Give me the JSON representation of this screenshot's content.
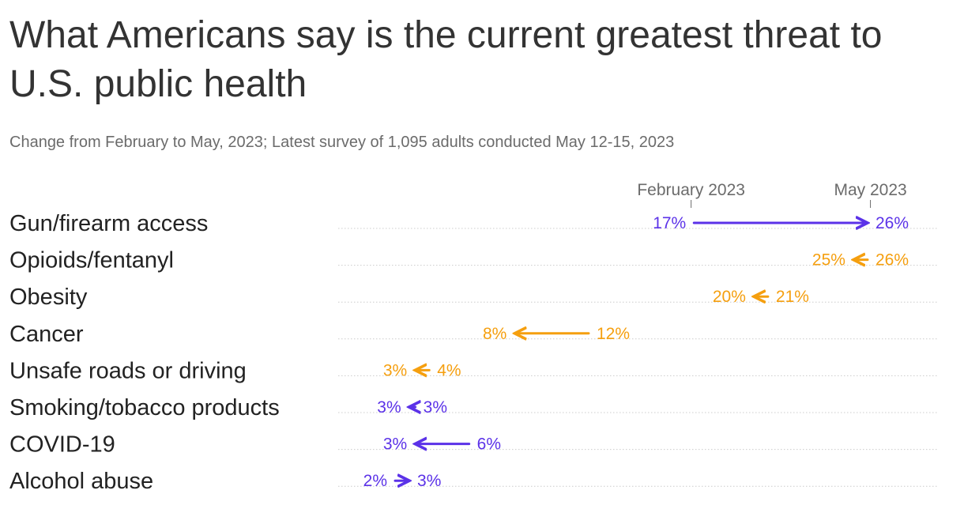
{
  "title": "What Americans say is the current greatest threat to U.S. public health",
  "subtitle": "Change from February to May, 2023; Latest survey of 1,095 adults conducted May 12-15, 2023",
  "colors": {
    "increase_or_same": "#5b32e8",
    "decrease": "#f59f0f",
    "gridline": "#cccccc",
    "header": "#6b6b6b"
  },
  "chart_data": {
    "type": "arrow-dot",
    "title": "What Americans say is the current greatest threat to U.S. public health",
    "subtitle": "Change from February to May, 2023; Latest survey of 1,095 adults conducted May 12-15, 2023",
    "series": [
      {
        "name": "February 2023",
        "values": [
          17,
          26,
          21,
          12,
          4,
          3,
          6,
          2
        ]
      },
      {
        "name": "May 2023",
        "values": [
          26,
          25,
          20,
          8,
          3,
          3,
          3,
          3
        ]
      }
    ],
    "rows": [
      {
        "label": "Gun/firearm access",
        "feb": 17,
        "may": 26,
        "feb_label": "17%",
        "may_label": "26%",
        "color": "#5b32e8"
      },
      {
        "label": "Opioids/fentanyl",
        "feb": 26,
        "may": 25,
        "feb_label": "26%",
        "may_label": "25%",
        "color": "#f59f0f"
      },
      {
        "label": "Obesity",
        "feb": 21,
        "may": 20,
        "feb_label": "21%",
        "may_label": "20%",
        "color": "#f59f0f"
      },
      {
        "label": "Cancer",
        "feb": 12,
        "may": 8,
        "feb_label": "12%",
        "may_label": "8%",
        "color": "#f59f0f"
      },
      {
        "label": "Unsafe roads or driving",
        "feb": 4,
        "may": 3,
        "feb_label": "4%",
        "may_label": "3%",
        "color": "#f59f0f"
      },
      {
        "label": "Smoking/tobacco products",
        "feb": 3,
        "may": 3,
        "feb_label": "3%",
        "may_label": "3%",
        "color": "#5b32e8"
      },
      {
        "label": "COVID-19",
        "feb": 6,
        "may": 3,
        "feb_label": "6%",
        "may_label": "3%",
        "color": "#5b32e8"
      },
      {
        "label": "Alcohol abuse",
        "feb": 2,
        "may": 3,
        "feb_label": "2%",
        "may_label": "3%",
        "color": "#5b32e8"
      }
    ],
    "annotations": [
      {
        "label": "February 2023",
        "value": 17
      },
      {
        "label": "May 2023",
        "value": 26
      }
    ],
    "xlim": [
      0,
      28
    ],
    "grid": true
  }
}
